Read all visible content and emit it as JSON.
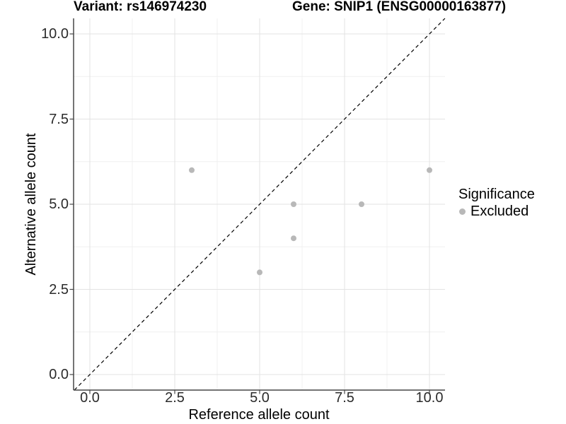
{
  "chart_data": {
    "type": "scatter",
    "titles": {
      "left": "Variant: rs146974230",
      "right": "Gene: SNIP1 (ENSG00000163877)"
    },
    "xlabel": "Reference allele count",
    "ylabel": "Alternative allele count",
    "x_ticks": [
      "0.0",
      "2.5",
      "5.0",
      "7.5",
      "10.0"
    ],
    "y_ticks": [
      "10.0",
      "7.5",
      "5.0",
      "2.5",
      "0.0"
    ],
    "x_tick_values": [
      0,
      2.5,
      5,
      7.5,
      10
    ],
    "y_tick_values": [
      10,
      7.5,
      5,
      2.5,
      0
    ],
    "minor_tick_values": [
      1.25,
      3.75,
      6.25,
      8.75
    ],
    "xlim": [
      -0.48,
      10.46
    ],
    "ylim": [
      -0.46,
      10.46
    ],
    "grid": true,
    "reference_line": {
      "style": "dashed",
      "slope": 1,
      "intercept": 0,
      "color": "#000000"
    },
    "series": [
      {
        "name": "Excluded",
        "color": "#b8b8b8",
        "points": [
          {
            "x": 3,
            "y": 6
          },
          {
            "x": 5,
            "y": 3
          },
          {
            "x": 6,
            "y": 4
          },
          {
            "x": 6,
            "y": 5
          },
          {
            "x": 8,
            "y": 5
          },
          {
            "x": 10,
            "y": 6
          }
        ]
      }
    ],
    "legend": {
      "title": "Significance",
      "position": "right",
      "items": [
        {
          "label": "Excluded",
          "color": "#b8b8b8",
          "marker": "circle"
        }
      ]
    },
    "colors": {
      "background": "#ffffff",
      "grid_major": "#e3e3e3",
      "grid_minor": "#f0f0f0",
      "axis": "#464646",
      "point": "#b8b8b8",
      "text": "#000000"
    }
  }
}
